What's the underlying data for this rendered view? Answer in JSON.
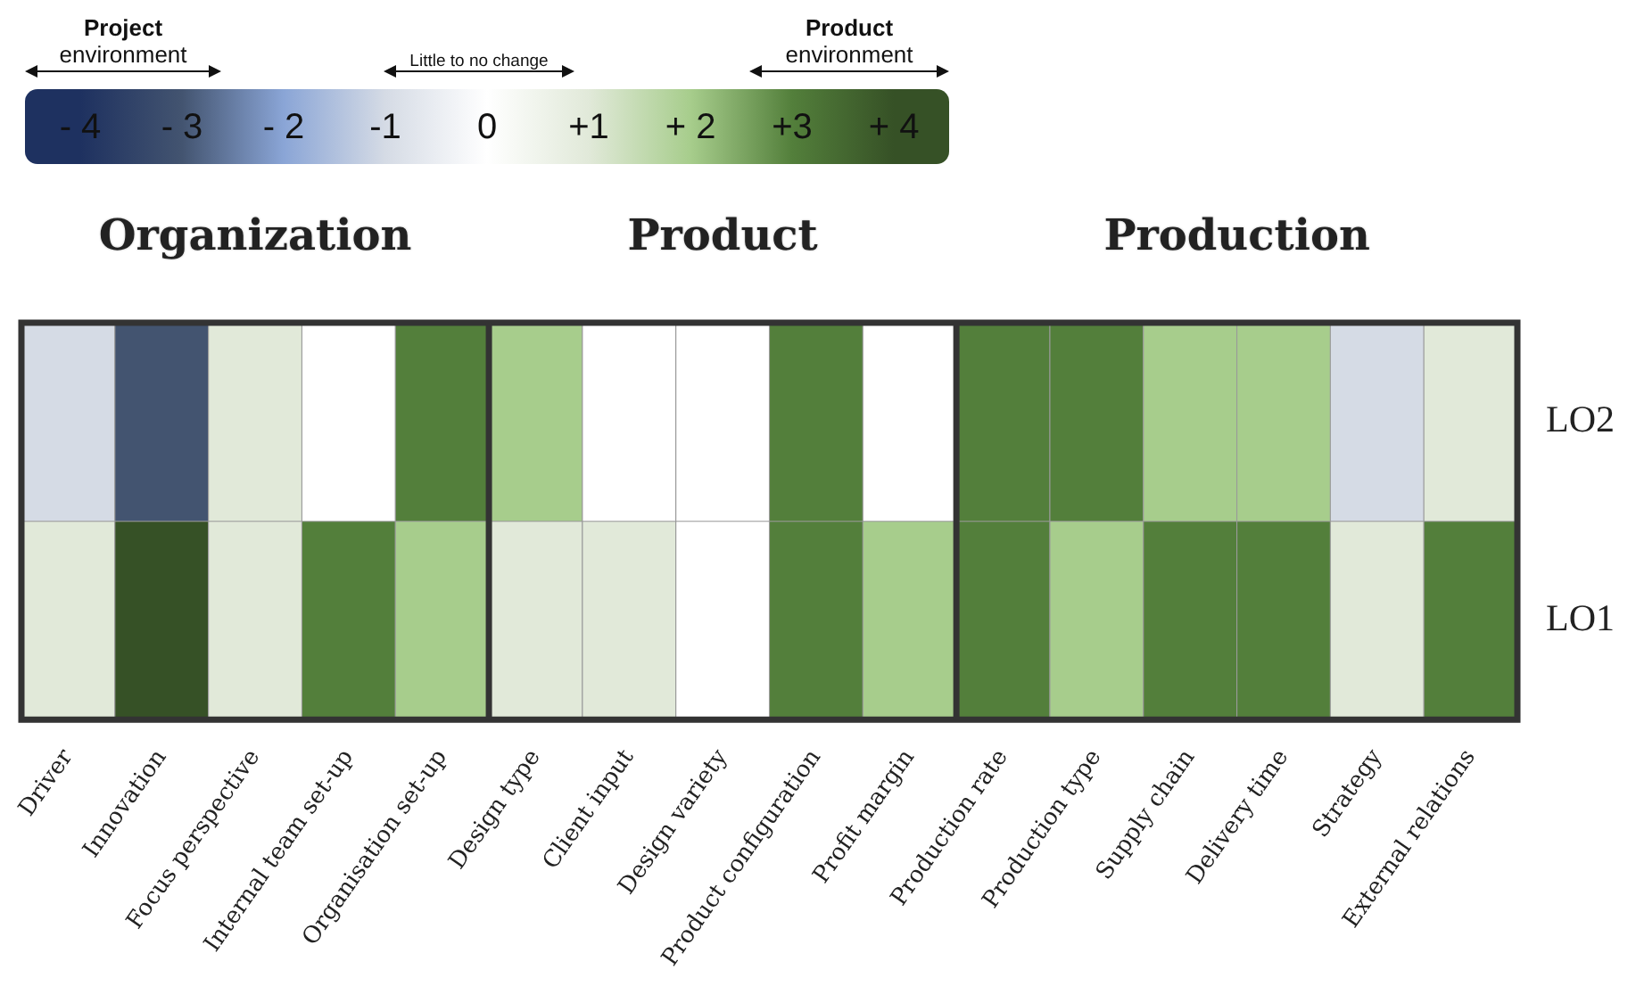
{
  "chart_data": {
    "type": "heatmap",
    "categories": [
      "Driver",
      "Innovation",
      "Focus perspective",
      "Internal team set-up",
      "Organisation set-up",
      "Design type",
      "Client input",
      "Design variety",
      "Product configuration",
      "Profit margin",
      "Production rate",
      "Production type",
      "Supply chain",
      "Delivery time",
      "Strategy",
      "External relations"
    ],
    "y_categories": [
      "LO2",
      "LO1"
    ],
    "cells": [
      [
        -1,
        -3,
        1,
        0,
        3,
        2,
        0,
        0,
        3,
        0,
        3,
        3,
        2,
        2,
        -1,
        1
      ],
      [
        1,
        4,
        1,
        3,
        2,
        1,
        1,
        0,
        3,
        2,
        3,
        2,
        3,
        3,
        1,
        3
      ]
    ],
    "clim": [
      -4,
      4
    ],
    "cticks": [
      {
        "value": -4,
        "label": "- 4"
      },
      {
        "value": -3,
        "label": "- 3"
      },
      {
        "value": -2,
        "label": "- 2"
      },
      {
        "value": -1,
        "label": "-1"
      },
      0,
      {
        "value": 1,
        "label": "+1"
      },
      {
        "value": 2,
        "label": "+ 2"
      },
      {
        "value": 3,
        "label": "+3"
      },
      {
        "value": 4,
        "label": "+ 4"
      }
    ],
    "annotations": [
      "Project\nenvironment",
      "Little to no change",
      "Product\nenvironment",
      "Organization",
      "Product",
      "Production"
    ]
  }
}
